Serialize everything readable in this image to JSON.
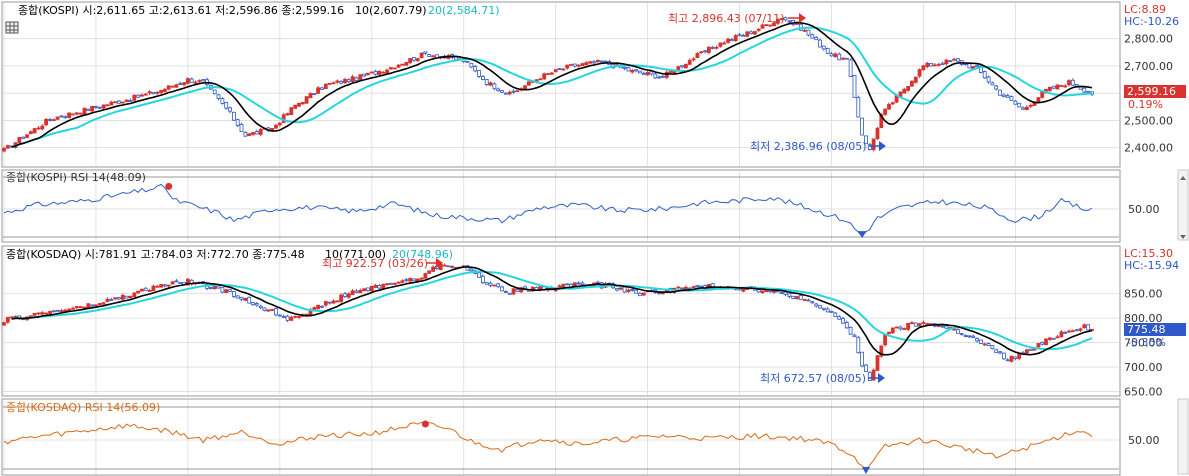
{
  "panels": {
    "kospi": {
      "header": "종합(KOSPI) 시:2,611.65 고:2,613.61 저:2,596.86 종:2,599.16",
      "ma10_label": "10(2,607.79)",
      "ma20_label": "20(2,584.71)",
      "lc_label": "LC:8.89",
      "hc_label": "HC:-10.26",
      "last_price": "2,599.16",
      "change_pct": "0.19%",
      "high_annotation": "최고 2,896.43 (07/11)",
      "low_annotation": "최저 2,386.96 (08/05)"
    },
    "kospi_rsi": {
      "header": "종합(KOSPI) RSI 14(48.09)",
      "tick": "50.00"
    },
    "kosdaq": {
      "header": "종합(KOSDAQ) 시:781.91 고:784.03 저:772.70 종:775.48",
      "ma10_label": "10(771.00)",
      "ma20_label": "20(748.96)",
      "lc_label": "LC:15.30",
      "hc_label": "HC:-15.94",
      "last_price": "775.48",
      "change_pct": "-0.35%",
      "high_annotation": "최고 922.57 (03/26)",
      "low_annotation": "최저 672.57 (08/05)"
    },
    "kosdaq_rsi": {
      "header": "종합(KOSDAQ) RSI 14(56.09)",
      "tick": "50.00"
    }
  },
  "colors": {
    "up": "#d8332f",
    "down": "#2f58c8",
    "ma10": "#000000",
    "ma20": "#26d6dc",
    "rsi_kospi": "#2f5fc8",
    "rsi_kosdaq": "#d96a16",
    "grid": "#dcdcdc",
    "axis_text": "#333333"
  },
  "chart_data": [
    {
      "type": "candlestick",
      "title": "종합(KOSPI)",
      "ylim": [
        2340,
        2920
      ],
      "yticks": [
        2400,
        2500,
        2600,
        2700,
        2800
      ],
      "ytick_labels": [
        "2,400.00",
        "2,500.00",
        "2,600.00",
        "2,700.00",
        "2,800.00"
      ],
      "anchors": [
        [
          0,
          2390
        ],
        [
          5,
          2440
        ],
        [
          12,
          2505
        ],
        [
          20,
          2535
        ],
        [
          30,
          2570
        ],
        [
          40,
          2605
        ],
        [
          48,
          2650
        ],
        [
          52,
          2640
        ],
        [
          58,
          2545
        ],
        [
          63,
          2445
        ],
        [
          70,
          2470
        ],
        [
          76,
          2555
        ],
        [
          84,
          2630
        ],
        [
          92,
          2655
        ],
        [
          100,
          2690
        ],
        [
          110,
          2745
        ],
        [
          120,
          2720
        ],
        [
          126,
          2640
        ],
        [
          132,
          2595
        ],
        [
          140,
          2660
        ],
        [
          148,
          2700
        ],
        [
          156,
          2715
        ],
        [
          164,
          2680
        ],
        [
          172,
          2660
        ],
        [
          180,
          2730
        ],
        [
          188,
          2790
        ],
        [
          196,
          2830
        ],
        [
          203,
          2880
        ],
        [
          208,
          2840
        ],
        [
          212,
          2790
        ],
        [
          216,
          2740
        ],
        [
          220,
          2720
        ],
        [
          224,
          2450
        ],
        [
          226,
          2390
        ],
        [
          229,
          2520
        ],
        [
          234,
          2600
        ],
        [
          240,
          2700
        ],
        [
          248,
          2720
        ],
        [
          254,
          2690
        ],
        [
          260,
          2600
        ],
        [
          266,
          2540
        ],
        [
          272,
          2610
        ],
        [
          278,
          2640
        ],
        [
          284,
          2600
        ]
      ],
      "series": [
        {
          "name": "10",
          "values_note": "10-day moving average of close"
        },
        {
          "name": "20",
          "values_note": "20-day moving average of close"
        }
      ]
    },
    {
      "type": "line",
      "title": "종합(KOSPI) RSI 14",
      "ylim": [
        10,
        95
      ],
      "yticks": [
        50
      ],
      "ytick_labels": [
        "50.00"
      ],
      "anchors": [
        [
          0,
          45
        ],
        [
          8,
          55
        ],
        [
          20,
          60
        ],
        [
          30,
          68
        ],
        [
          42,
          79
        ],
        [
          44,
          62
        ],
        [
          56,
          45
        ],
        [
          60,
          35
        ],
        [
          70,
          50
        ],
        [
          80,
          52
        ],
        [
          92,
          47
        ],
        [
          102,
          57
        ],
        [
          112,
          42
        ],
        [
          130,
          35
        ],
        [
          140,
          52
        ],
        [
          150,
          55
        ],
        [
          160,
          48
        ],
        [
          172,
          50
        ],
        [
          182,
          58
        ],
        [
          190,
          60
        ],
        [
          200,
          65
        ],
        [
          206,
          57
        ],
        [
          214,
          45
        ],
        [
          220,
          35
        ],
        [
          224,
          15
        ],
        [
          228,
          38
        ],
        [
          234,
          52
        ],
        [
          244,
          60
        ],
        [
          256,
          52
        ],
        [
          264,
          35
        ],
        [
          270,
          40
        ],
        [
          276,
          60
        ],
        [
          282,
          50
        ],
        [
          284,
          48
        ]
      ],
      "markers": [
        [
          43,
          79
        ],
        [
          224,
          15
        ]
      ]
    },
    {
      "type": "candlestick",
      "title": "종합(KOSDAQ)",
      "ylim": [
        645,
        935
      ],
      "yticks": [
        650,
        700,
        750,
        800,
        850
      ],
      "ytick_labels": [
        "650.00",
        "700.00",
        "750.00",
        "800.00",
        "850.00"
      ],
      "anchors": [
        [
          0,
          795
        ],
        [
          6,
          805
        ],
        [
          14,
          815
        ],
        [
          22,
          825
        ],
        [
          32,
          845
        ],
        [
          40,
          865
        ],
        [
          48,
          875
        ],
        [
          56,
          860
        ],
        [
          62,
          840
        ],
        [
          68,
          820
        ],
        [
          74,
          800
        ],
        [
          80,
          815
        ],
        [
          90,
          850
        ],
        [
          100,
          870
        ],
        [
          108,
          880
        ],
        [
          114,
          910
        ],
        [
          120,
          905
        ],
        [
          126,
          870
        ],
        [
          132,
          855
        ],
        [
          140,
          860
        ],
        [
          150,
          870
        ],
        [
          158,
          865
        ],
        [
          166,
          850
        ],
        [
          176,
          860
        ],
        [
          186,
          865
        ],
        [
          196,
          860
        ],
        [
          206,
          845
        ],
        [
          212,
          825
        ],
        [
          218,
          800
        ],
        [
          222,
          760
        ],
        [
          224,
          700
        ],
        [
          226,
          672
        ],
        [
          230,
          770
        ],
        [
          236,
          785
        ],
        [
          242,
          790
        ],
        [
          250,
          770
        ],
        [
          256,
          745
        ],
        [
          262,
          715
        ],
        [
          268,
          735
        ],
        [
          276,
          770
        ],
        [
          282,
          785
        ],
        [
          284,
          775
        ]
      ]
    },
    {
      "type": "line",
      "title": "종합(KOSDAQ) RSI 14",
      "ylim": [
        10,
        95
      ],
      "yticks": [
        50
      ],
      "ytick_labels": [
        "50.00"
      ],
      "anchors": [
        [
          0,
          48
        ],
        [
          10,
          55
        ],
        [
          22,
          62
        ],
        [
          32,
          68
        ],
        [
          42,
          62
        ],
        [
          52,
          50
        ],
        [
          62,
          60
        ],
        [
          72,
          45
        ],
        [
          82,
          55
        ],
        [
          96,
          58
        ],
        [
          106,
          68
        ],
        [
          110,
          70
        ],
        [
          116,
          64
        ],
        [
          122,
          48
        ],
        [
          130,
          38
        ],
        [
          140,
          52
        ],
        [
          150,
          45
        ],
        [
          160,
          50
        ],
        [
          172,
          55
        ],
        [
          184,
          52
        ],
        [
          196,
          55
        ],
        [
          208,
          52
        ],
        [
          216,
          45
        ],
        [
          222,
          30
        ],
        [
          225,
          10
        ],
        [
          230,
          42
        ],
        [
          240,
          50
        ],
        [
          250,
          40
        ],
        [
          260,
          30
        ],
        [
          270,
          45
        ],
        [
          280,
          62
        ],
        [
          284,
          56
        ]
      ],
      "markers": [
        [
          110,
          70
        ],
        [
          225,
          10
        ]
      ]
    }
  ]
}
